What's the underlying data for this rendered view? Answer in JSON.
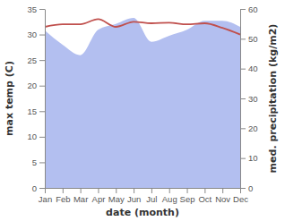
{
  "chart_data": {
    "type": "line",
    "x_label": "date (month)",
    "y_label": "max temp (C)",
    "y2_label": "med. precipitation (kg/m2)",
    "categories": [
      "Jan",
      "Feb",
      "Mar",
      "Apr",
      "May",
      "Jun",
      "Jul",
      "Aug",
      "Sep",
      "Oct",
      "Nov",
      "Dec"
    ],
    "series": [
      {
        "type": "area",
        "axis": "y2",
        "color": "#b3bff0",
        "values": [
          52.8,
          48,
          44.5,
          53,
          55,
          57,
          49,
          51,
          53,
          56,
          56,
          54
        ]
      },
      {
        "type": "line",
        "color": "#c0504d",
        "values": [
          31.5,
          32,
          32,
          33,
          31.5,
          32.5,
          32.2,
          32.3,
          32,
          32.2,
          31.3,
          30
        ]
      }
    ],
    "ylim": [
      0,
      35
    ],
    "yticks": [
      0,
      5,
      10,
      15,
      20,
      25,
      30,
      35
    ],
    "y2lim": [
      0,
      60
    ],
    "y2ticks": [
      0,
      10,
      20,
      30,
      40,
      50,
      60
    ],
    "grid": false
  }
}
